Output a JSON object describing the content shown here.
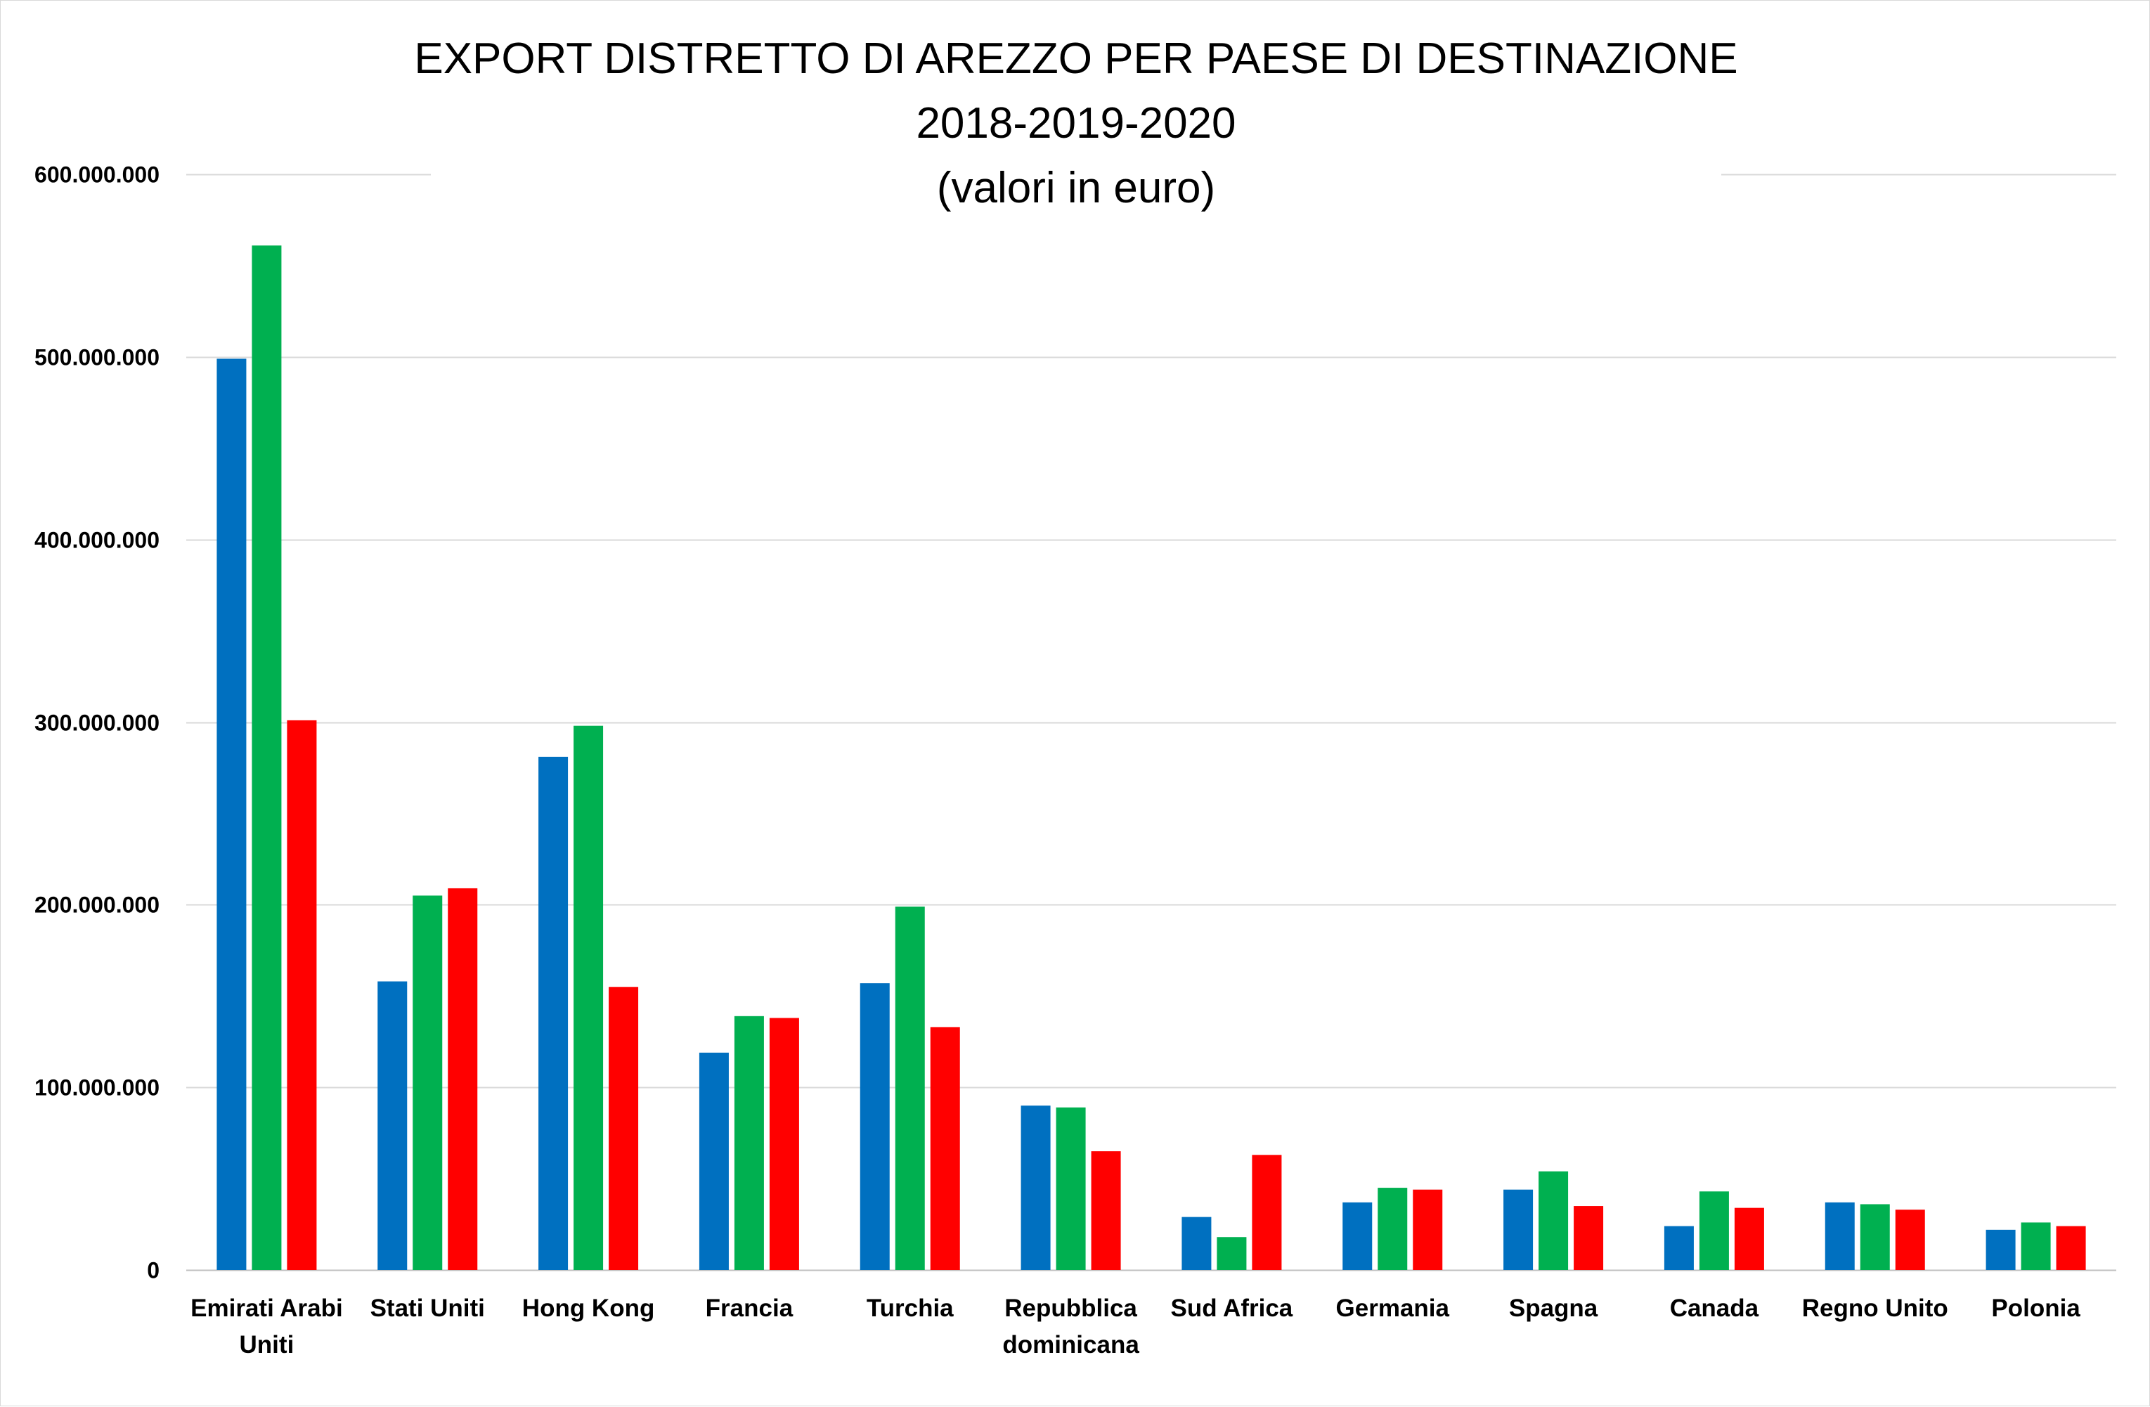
{
  "chart_data": {
    "type": "bar",
    "title": [
      "EXPORT DISTRETTO DI AREZZO PER PAESE DI DESTINAZIONE",
      "2018-2019-2020",
      "(valori in euro)"
    ],
    "xlabel": "",
    "ylabel": "",
    "ylim": [
      0,
      600000000
    ],
    "yticks": [
      0,
      100000000,
      200000000,
      300000000,
      400000000,
      500000000,
      600000000
    ],
    "ytick_labels": [
      "0",
      "100.000.000",
      "200.000.000",
      "300.000.000",
      "400.000.000",
      "500.000.000",
      "600.000.000"
    ],
    "grid": true,
    "legend": "none",
    "categories": [
      [
        "Emirati Arabi",
        "Uniti"
      ],
      [
        "Stati Uniti"
      ],
      [
        "Hong Kong"
      ],
      [
        "Francia"
      ],
      [
        "Turchia"
      ],
      [
        "Repubblica",
        "dominicana"
      ],
      [
        "Sud Africa"
      ],
      [
        "Germania"
      ],
      [
        "Spagna"
      ],
      [
        "Canada"
      ],
      [
        "Regno Unito"
      ],
      [
        "Polonia"
      ]
    ],
    "series": [
      {
        "color": "#0070C0",
        "values": [
          499000000,
          158000000,
          281000000,
          119000000,
          157000000,
          90000000,
          29000000,
          37000000,
          44000000,
          24000000,
          37000000,
          22000000
        ]
      },
      {
        "color": "#00B050",
        "values": [
          561000000,
          205000000,
          298000000,
          139000000,
          199000000,
          89000000,
          18000000,
          45000000,
          54000000,
          43000000,
          36000000,
          26000000
        ]
      },
      {
        "color": "#FF0000",
        "values": [
          301000000,
          209000000,
          155000000,
          138000000,
          133000000,
          65000000,
          63000000,
          44000000,
          35000000,
          34000000,
          33000000,
          24000000
        ]
      }
    ]
  }
}
